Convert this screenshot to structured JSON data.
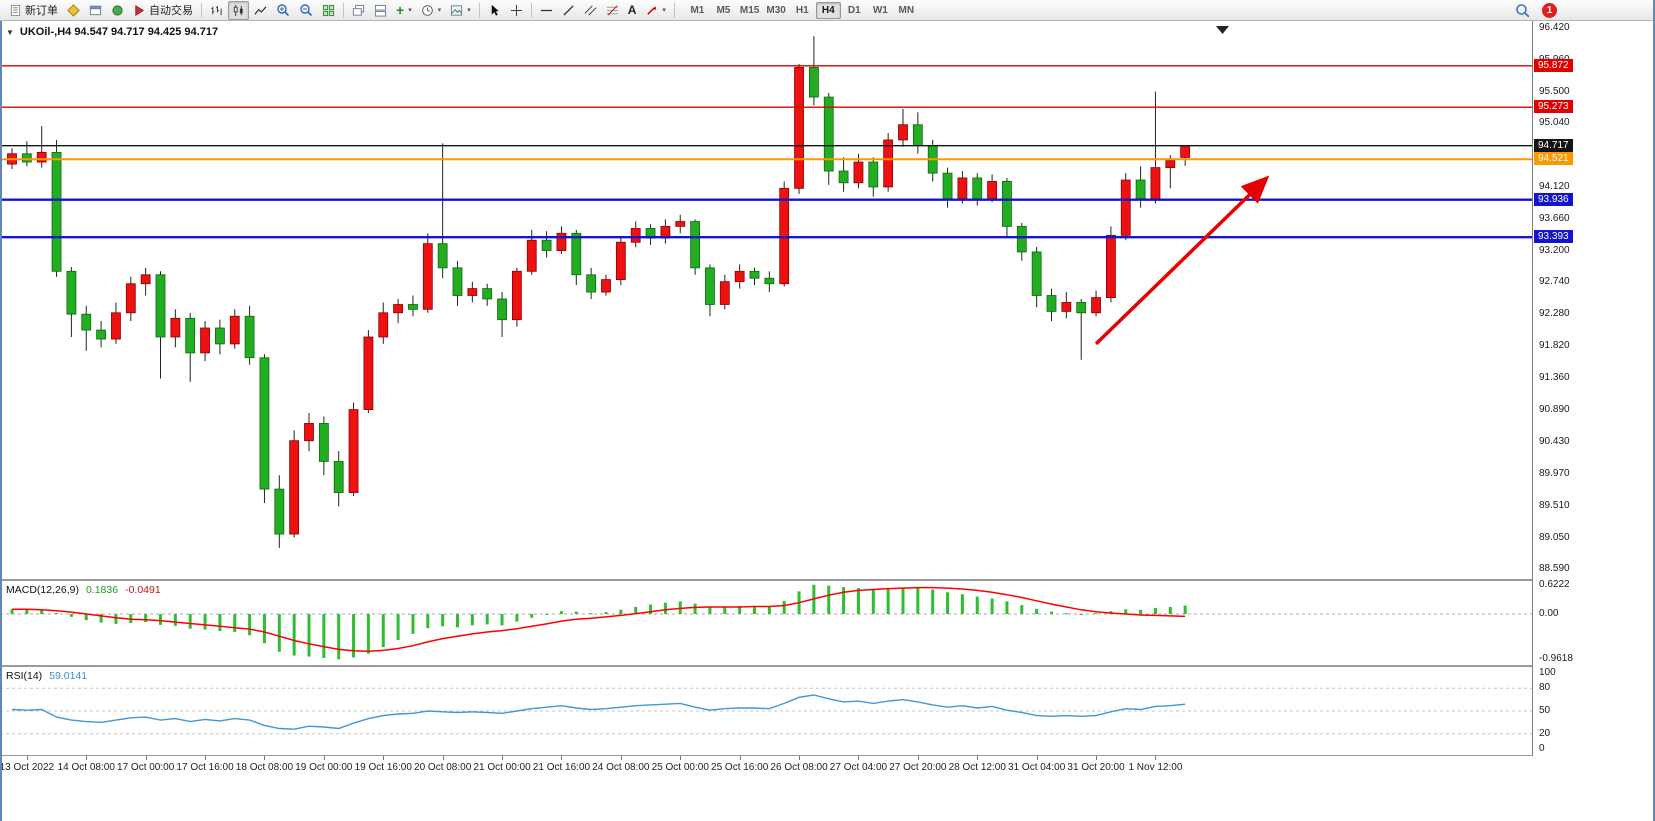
{
  "window": {
    "badge_count": "1"
  },
  "toolbar": {
    "new_order_label": "新订单",
    "autotrading_label": "自动交易",
    "timeframes": [
      "M1",
      "M5",
      "M15",
      "M30",
      "H1",
      "H4",
      "D1",
      "W1",
      "MN"
    ],
    "active_timeframe": "H4"
  },
  "chart_data": [
    {
      "type": "candlestick",
      "title": "UKOil-,H4  94.547 94.717 94.425 94.717",
      "symbol": "UKOil-",
      "timeframe": "H4",
      "last_bar": {
        "open": 94.547,
        "high": 94.717,
        "low": 94.425,
        "close": 94.717
      },
      "up_color": "#ee1111",
      "down_color": "#22ad22",
      "wick_color": "#222222",
      "ylim": [
        88.45,
        96.52
      ],
      "y_ticks": [
        "96.420",
        "95.960",
        "95.500",
        "95.040",
        "94.580",
        "94.120",
        "93.660",
        "93.200",
        "92.740",
        "92.280",
        "91.820",
        "91.360",
        "90.890",
        "90.430",
        "89.970",
        "89.510",
        "89.050",
        "88.590"
      ],
      "lines": [
        {
          "label": "95.872",
          "price": 95.872,
          "color": "#e00000",
          "width": 1.4
        },
        {
          "label": "95.273",
          "price": 95.273,
          "color": "#e00000",
          "width": 1.4
        },
        {
          "label": "94.717",
          "price": 94.717,
          "color": "#141414",
          "width": 1.4
        },
        {
          "label": "94.521",
          "price": 94.521,
          "color": "#ff9800",
          "width": 2
        },
        {
          "label": "93.936",
          "price": 93.936,
          "color": "#1414cc",
          "width": 2.4
        },
        {
          "label": "93.393",
          "price": 93.393,
          "color": "#1414cc",
          "width": 2.4
        }
      ],
      "arrow": {
        "from_bar": 73,
        "from_price": 91.85,
        "to_bar": 84.5,
        "to_price": 94.25,
        "color": "#e60000"
      },
      "x_labels": [
        {
          "bar": 1,
          "text": "13 Oct 2022"
        },
        {
          "bar": 5,
          "text": "14 Oct 08:00"
        },
        {
          "bar": 9,
          "text": "17 Oct 00:00"
        },
        {
          "bar": 13,
          "text": "17 Oct 16:00"
        },
        {
          "bar": 17,
          "text": "18 Oct 08:00"
        },
        {
          "bar": 21,
          "text": "19 Oct 00:00"
        },
        {
          "bar": 25,
          "text": "19 Oct 16:00"
        },
        {
          "bar": 29,
          "text": "20 Oct 08:00"
        },
        {
          "bar": 33,
          "text": "21 Oct 00:00"
        },
        {
          "bar": 37,
          "text": "21 Oct 16:00"
        },
        {
          "bar": 41,
          "text": "24 Oct 08:00"
        },
        {
          "bar": 45,
          "text": "25 Oct 00:00"
        },
        {
          "bar": 49,
          "text": "25 Oct 16:00"
        },
        {
          "bar": 53,
          "text": "26 Oct 08:00"
        },
        {
          "bar": 57,
          "text": "27 Oct 04:00"
        },
        {
          "bar": 61,
          "text": "27 Oct 20:00"
        },
        {
          "bar": 65,
          "text": "28 Oct 12:00"
        },
        {
          "bar": 69,
          "text": "31 Oct 04:00"
        },
        {
          "bar": 73,
          "text": "31 Oct 20:00"
        },
        {
          "bar": 77,
          "text": "1 Nov 12:00"
        }
      ],
      "ohlc": [
        [
          94.45,
          94.68,
          94.38,
          94.6
        ],
        [
          94.6,
          94.78,
          94.42,
          94.48
        ],
        [
          94.48,
          95.0,
          94.4,
          94.62
        ],
        [
          94.62,
          94.8,
          92.82,
          92.9
        ],
        [
          92.9,
          92.96,
          91.95,
          92.28
        ],
        [
          92.28,
          92.4,
          91.75,
          92.05
        ],
        [
          92.05,
          92.18,
          91.8,
          91.92
        ],
        [
          91.92,
          92.45,
          91.85,
          92.3
        ],
        [
          92.3,
          92.82,
          92.18,
          92.72
        ],
        [
          92.72,
          92.95,
          92.55,
          92.85
        ],
        [
          92.85,
          92.9,
          91.35,
          91.95
        ],
        [
          91.95,
          92.35,
          91.8,
          92.22
        ],
        [
          92.22,
          92.3,
          91.3,
          91.72
        ],
        [
          91.72,
          92.18,
          91.6,
          92.08
        ],
        [
          92.08,
          92.2,
          91.7,
          91.85
        ],
        [
          91.85,
          92.35,
          91.78,
          92.25
        ],
        [
          92.25,
          92.4,
          91.55,
          91.65
        ],
        [
          91.65,
          91.7,
          89.55,
          89.75
        ],
        [
          89.75,
          89.95,
          88.9,
          89.1
        ],
        [
          89.1,
          90.6,
          89.05,
          90.45
        ],
        [
          90.45,
          90.85,
          90.3,
          90.7
        ],
        [
          90.7,
          90.8,
          89.95,
          90.15
        ],
        [
          90.15,
          90.3,
          89.5,
          89.7
        ],
        [
          89.7,
          91.0,
          89.65,
          90.9
        ],
        [
          90.9,
          92.05,
          90.85,
          91.95
        ],
        [
          91.95,
          92.45,
          91.85,
          92.3
        ],
        [
          92.3,
          92.5,
          92.15,
          92.42
        ],
        [
          92.42,
          92.55,
          92.25,
          92.35
        ],
        [
          92.35,
          93.45,
          92.3,
          93.3
        ],
        [
          93.3,
          94.75,
          92.8,
          92.95
        ],
        [
          92.95,
          93.05,
          92.4,
          92.55
        ],
        [
          92.55,
          92.75,
          92.45,
          92.65
        ],
        [
          92.65,
          92.72,
          92.4,
          92.5
        ],
        [
          92.5,
          92.6,
          91.95,
          92.2
        ],
        [
          92.2,
          92.95,
          92.1,
          92.9
        ],
        [
          92.9,
          93.5,
          92.85,
          93.35
        ],
        [
          93.35,
          93.48,
          93.1,
          93.2
        ],
        [
          93.2,
          93.55,
          93.15,
          93.45
        ],
        [
          93.45,
          93.5,
          92.7,
          92.85
        ],
        [
          92.85,
          92.95,
          92.5,
          92.6
        ],
        [
          92.6,
          92.85,
          92.55,
          92.78
        ],
        [
          92.78,
          93.4,
          92.7,
          93.32
        ],
        [
          93.32,
          93.62,
          93.25,
          93.52
        ],
        [
          93.52,
          93.58,
          93.28,
          93.38
        ],
        [
          93.38,
          93.65,
          93.3,
          93.55
        ],
        [
          93.55,
          93.72,
          93.45,
          93.62
        ],
        [
          93.62,
          93.65,
          92.85,
          92.95
        ],
        [
          92.95,
          93.0,
          92.25,
          92.42
        ],
        [
          92.42,
          92.85,
          92.35,
          92.75
        ],
        [
          92.75,
          93.0,
          92.65,
          92.9
        ],
        [
          92.9,
          92.95,
          92.7,
          92.8
        ],
        [
          92.8,
          92.9,
          92.6,
          92.72
        ],
        [
          92.72,
          94.2,
          92.68,
          94.1
        ],
        [
          94.1,
          95.9,
          94.02,
          95.85
        ],
        [
          95.85,
          96.3,
          95.3,
          95.42
        ],
        [
          95.42,
          95.48,
          94.15,
          94.35
        ],
        [
          94.35,
          94.55,
          94.05,
          94.18
        ],
        [
          94.18,
          94.6,
          94.1,
          94.48
        ],
        [
          94.48,
          94.55,
          93.98,
          94.12
        ],
        [
          94.12,
          94.9,
          94.05,
          94.8
        ],
        [
          94.8,
          95.25,
          94.7,
          95.02
        ],
        [
          95.02,
          95.2,
          94.6,
          94.72
        ],
        [
          94.72,
          94.8,
          94.2,
          94.32
        ],
        [
          94.32,
          94.4,
          93.82,
          93.95
        ],
        [
          93.95,
          94.35,
          93.88,
          94.25
        ],
        [
          94.25,
          94.32,
          93.85,
          93.95
        ],
        [
          93.95,
          94.3,
          93.9,
          94.2
        ],
        [
          94.2,
          94.25,
          93.38,
          93.55
        ],
        [
          93.55,
          93.6,
          93.05,
          93.18
        ],
        [
          93.18,
          93.25,
          92.38,
          92.55
        ],
        [
          92.55,
          92.65,
          92.18,
          92.32
        ],
        [
          92.32,
          92.6,
          92.22,
          92.45
        ],
        [
          92.45,
          92.5,
          91.62,
          92.3
        ],
        [
          92.3,
          92.62,
          92.25,
          92.52
        ],
        [
          92.52,
          93.55,
          92.45,
          93.42
        ],
        [
          93.42,
          94.32,
          93.35,
          94.22
        ],
        [
          94.22,
          94.42,
          93.82,
          93.95
        ],
        [
          93.95,
          95.5,
          93.88,
          94.4
        ],
        [
          94.4,
          94.58,
          94.1,
          94.5
        ],
        [
          94.547,
          94.717,
          94.425,
          94.717
        ]
      ]
    },
    {
      "type": "bar",
      "label": "MACD(12,26,9)",
      "main_value": 0.1836,
      "signal_value": -0.0491,
      "main_value_text": "0.1836",
      "signal_value_text": "-0.0491",
      "hist_color": "#2fbe2f",
      "signal_color": "#ff0000",
      "ylim": [
        -1.08,
        0.7
      ],
      "y_ticks": [
        "0.6222",
        "0.00",
        "-0.9618"
      ],
      "histogram": [
        0.1,
        0.09,
        0.08,
        0.02,
        -0.06,
        -0.13,
        -0.18,
        -0.21,
        -0.19,
        -0.17,
        -0.23,
        -0.25,
        -0.31,
        -0.33,
        -0.36,
        -0.38,
        -0.45,
        -0.62,
        -0.8,
        -0.88,
        -0.9,
        -0.93,
        -0.96,
        -0.92,
        -0.84,
        -0.7,
        -0.55,
        -0.42,
        -0.3,
        -0.26,
        -0.28,
        -0.24,
        -0.22,
        -0.24,
        -0.16,
        -0.08,
        0.0,
        0.06,
        0.05,
        0.02,
        0.04,
        0.09,
        0.15,
        0.2,
        0.24,
        0.27,
        0.22,
        0.16,
        0.15,
        0.17,
        0.17,
        0.15,
        0.28,
        0.48,
        0.62,
        0.6,
        0.57,
        0.55,
        0.51,
        0.53,
        0.56,
        0.57,
        0.52,
        0.46,
        0.42,
        0.37,
        0.33,
        0.27,
        0.19,
        0.11,
        0.05,
        0.02,
        0.0,
        0.02,
        0.06,
        0.1,
        0.09,
        0.13,
        0.15,
        0.18
      ],
      "signal": [
        0.1,
        0.1,
        0.09,
        0.07,
        0.04,
        0.0,
        -0.04,
        -0.08,
        -0.11,
        -0.12,
        -0.14,
        -0.17,
        -0.2,
        -0.23,
        -0.26,
        -0.29,
        -0.32,
        -0.38,
        -0.47,
        -0.56,
        -0.63,
        -0.69,
        -0.75,
        -0.78,
        -0.79,
        -0.77,
        -0.73,
        -0.67,
        -0.59,
        -0.52,
        -0.47,
        -0.42,
        -0.38,
        -0.35,
        -0.31,
        -0.26,
        -0.21,
        -0.15,
        -0.11,
        -0.09,
        -0.06,
        -0.03,
        0.01,
        0.05,
        0.09,
        0.12,
        0.14,
        0.15,
        0.15,
        0.15,
        0.16,
        0.16,
        0.18,
        0.24,
        0.32,
        0.4,
        0.46,
        0.5,
        0.52,
        0.54,
        0.55,
        0.56,
        0.56,
        0.55,
        0.53,
        0.5,
        0.46,
        0.41,
        0.35,
        0.28,
        0.21,
        0.15,
        0.09,
        0.05,
        0.02,
        0.0,
        -0.02,
        -0.03,
        -0.04,
        -0.05
      ]
    },
    {
      "type": "line",
      "label": "RSI(14)",
      "value": 59.0141,
      "value_text": "59.0141",
      "color": "#4596d2",
      "levels": [
        80,
        50,
        20
      ],
      "ylim": [
        0,
        100
      ],
      "y_ticks": [
        "100",
        "80",
        "50",
        "20",
        "0"
      ],
      "series": [
        52,
        51,
        52,
        42,
        38,
        36,
        35,
        38,
        41,
        42,
        38,
        40,
        36,
        39,
        37,
        40,
        38,
        31,
        27,
        26,
        30,
        29,
        27,
        34,
        40,
        44,
        46,
        47,
        50,
        49,
        48,
        49,
        48,
        47,
        50,
        53,
        55,
        57,
        54,
        52,
        53,
        55,
        57,
        58,
        59,
        60,
        55,
        51,
        53,
        54,
        54,
        53,
        60,
        68,
        71,
        66,
        62,
        63,
        60,
        63,
        65,
        62,
        58,
        55,
        57,
        54,
        56,
        51,
        48,
        44,
        43,
        44,
        43,
        44,
        49,
        53,
        52,
        56,
        57,
        59
      ]
    }
  ]
}
